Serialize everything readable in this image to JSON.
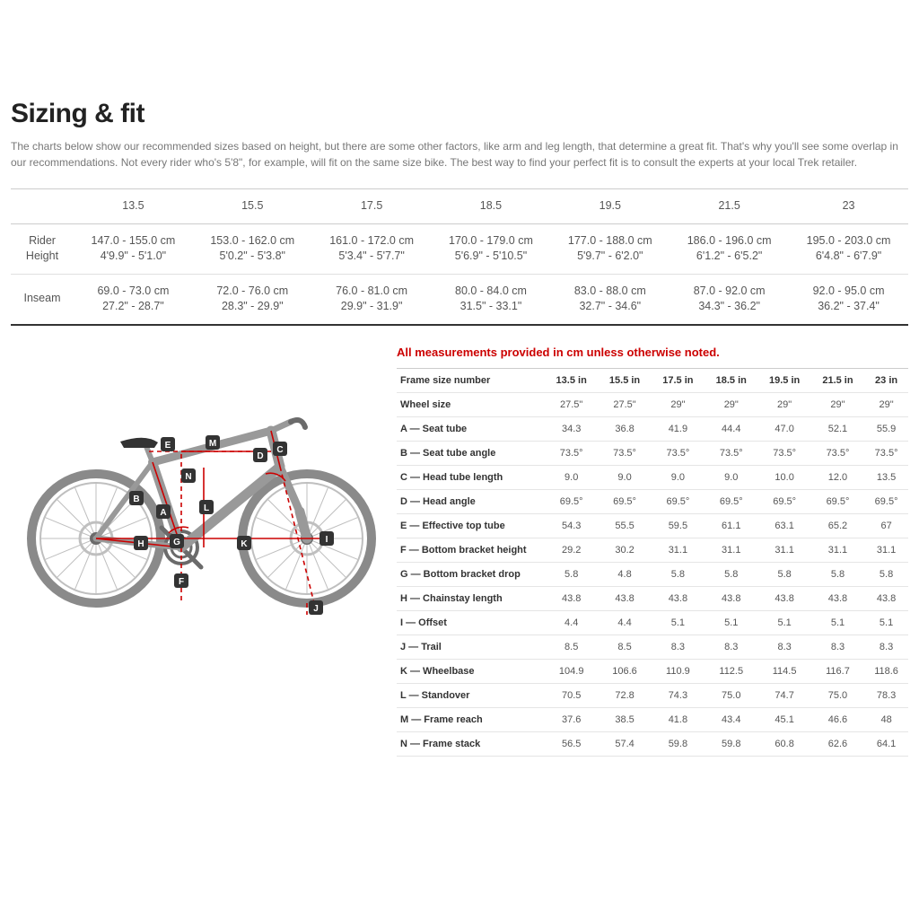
{
  "title": "Sizing & fit",
  "intro": "The charts below show our recommended sizes based on height, but there are some other factors, like arm and leg length, that determine a great fit. That's why you'll see some overlap in our recommendations. Not every rider who's 5'8\", for example, will fit on the same size bike. The best way to find your perfect fit is to consult the experts at your local Trek retailer.",
  "sizeTable": {
    "headers": [
      "",
      "13.5",
      "15.5",
      "17.5",
      "18.5",
      "19.5",
      "21.5",
      "23"
    ],
    "rows": [
      {
        "label": "Rider Height",
        "cells": [
          {
            "cm": "147.0 - 155.0 cm",
            "ft": "4'9.9\" - 5'1.0\""
          },
          {
            "cm": "153.0 - 162.0 cm",
            "ft": "5'0.2\" - 5'3.8\""
          },
          {
            "cm": "161.0 - 172.0 cm",
            "ft": "5'3.4\" - 5'7.7\""
          },
          {
            "cm": "170.0 - 179.0 cm",
            "ft": "5'6.9\" - 5'10.5\""
          },
          {
            "cm": "177.0 - 188.0 cm",
            "ft": "5'9.7\" - 6'2.0\""
          },
          {
            "cm": "186.0 - 196.0 cm",
            "ft": "6'1.2\" - 6'5.2\""
          },
          {
            "cm": "195.0 - 203.0 cm",
            "ft": "6'4.8\" - 6'7.9\""
          }
        ]
      },
      {
        "label": "Inseam",
        "cells": [
          {
            "cm": "69.0 - 73.0 cm",
            "ft": "27.2\" - 28.7\""
          },
          {
            "cm": "72.0 - 76.0 cm",
            "ft": "28.3\" - 29.9\""
          },
          {
            "cm": "76.0 - 81.0 cm",
            "ft": "29.9\" - 31.9\""
          },
          {
            "cm": "80.0 - 84.0 cm",
            "ft": "31.5\" - 33.1\""
          },
          {
            "cm": "83.0 - 88.0 cm",
            "ft": "32.7\" - 34.6\""
          },
          {
            "cm": "87.0 - 92.0 cm",
            "ft": "34.3\" - 36.2\""
          },
          {
            "cm": "92.0 - 95.0 cm",
            "ft": "36.2\" - 37.4\""
          }
        ]
      }
    ]
  },
  "note": "All measurements provided in cm unless otherwise noted.",
  "geomTable": {
    "header": [
      "Frame size number",
      "13.5 in",
      "15.5 in",
      "17.5 in",
      "18.5 in",
      "19.5 in",
      "21.5 in",
      "23 in"
    ],
    "rows": [
      [
        "Wheel size",
        "27.5\"",
        "27.5\"",
        "29\"",
        "29\"",
        "29\"",
        "29\"",
        "29\""
      ],
      [
        "A — Seat tube",
        "34.3",
        "36.8",
        "41.9",
        "44.4",
        "47.0",
        "52.1",
        "55.9"
      ],
      [
        "B — Seat tube angle",
        "73.5°",
        "73.5°",
        "73.5°",
        "73.5°",
        "73.5°",
        "73.5°",
        "73.5°"
      ],
      [
        "C — Head tube length",
        "9.0",
        "9.0",
        "9.0",
        "9.0",
        "10.0",
        "12.0",
        "13.5"
      ],
      [
        "D — Head angle",
        "69.5°",
        "69.5°",
        "69.5°",
        "69.5°",
        "69.5°",
        "69.5°",
        "69.5°"
      ],
      [
        "E — Effective top tube",
        "54.3",
        "55.5",
        "59.5",
        "61.1",
        "63.1",
        "65.2",
        "67"
      ],
      [
        "F — Bottom bracket height",
        "29.2",
        "30.2",
        "31.1",
        "31.1",
        "31.1",
        "31.1",
        "31.1"
      ],
      [
        "G — Bottom bracket drop",
        "5.8",
        "4.8",
        "5.8",
        "5.8",
        "5.8",
        "5.8",
        "5.8"
      ],
      [
        "H — Chainstay length",
        "43.8",
        "43.8",
        "43.8",
        "43.8",
        "43.8",
        "43.8",
        "43.8"
      ],
      [
        "I — Offset",
        "4.4",
        "4.4",
        "5.1",
        "5.1",
        "5.1",
        "5.1",
        "5.1"
      ],
      [
        "J — Trail",
        "8.5",
        "8.5",
        "8.3",
        "8.3",
        "8.3",
        "8.3",
        "8.3"
      ],
      [
        "K — Wheelbase",
        "104.9",
        "106.6",
        "110.9",
        "112.5",
        "114.5",
        "116.7",
        "118.6"
      ],
      [
        "L — Standover",
        "70.5",
        "72.8",
        "74.3",
        "75.0",
        "74.7",
        "75.0",
        "78.3"
      ],
      [
        "M — Frame reach",
        "37.6",
        "38.5",
        "41.8",
        "43.4",
        "45.1",
        "46.6",
        "48"
      ],
      [
        "N — Frame stack",
        "56.5",
        "57.4",
        "59.8",
        "59.8",
        "60.8",
        "62.6",
        "64.1"
      ]
    ]
  },
  "diagram": {
    "colors": {
      "frame": "#999999",
      "frameDark": "#6b6b6b",
      "line": "#bfbfbf",
      "measure": "#cc0000",
      "wheel": "#bfbfbf",
      "tire": "#8a8a8a",
      "labelText": "#ffffff"
    },
    "labels": [
      "A",
      "B",
      "C",
      "D",
      "E",
      "F",
      "G",
      "H",
      "I",
      "J",
      "K",
      "L",
      "M",
      "N"
    ]
  }
}
